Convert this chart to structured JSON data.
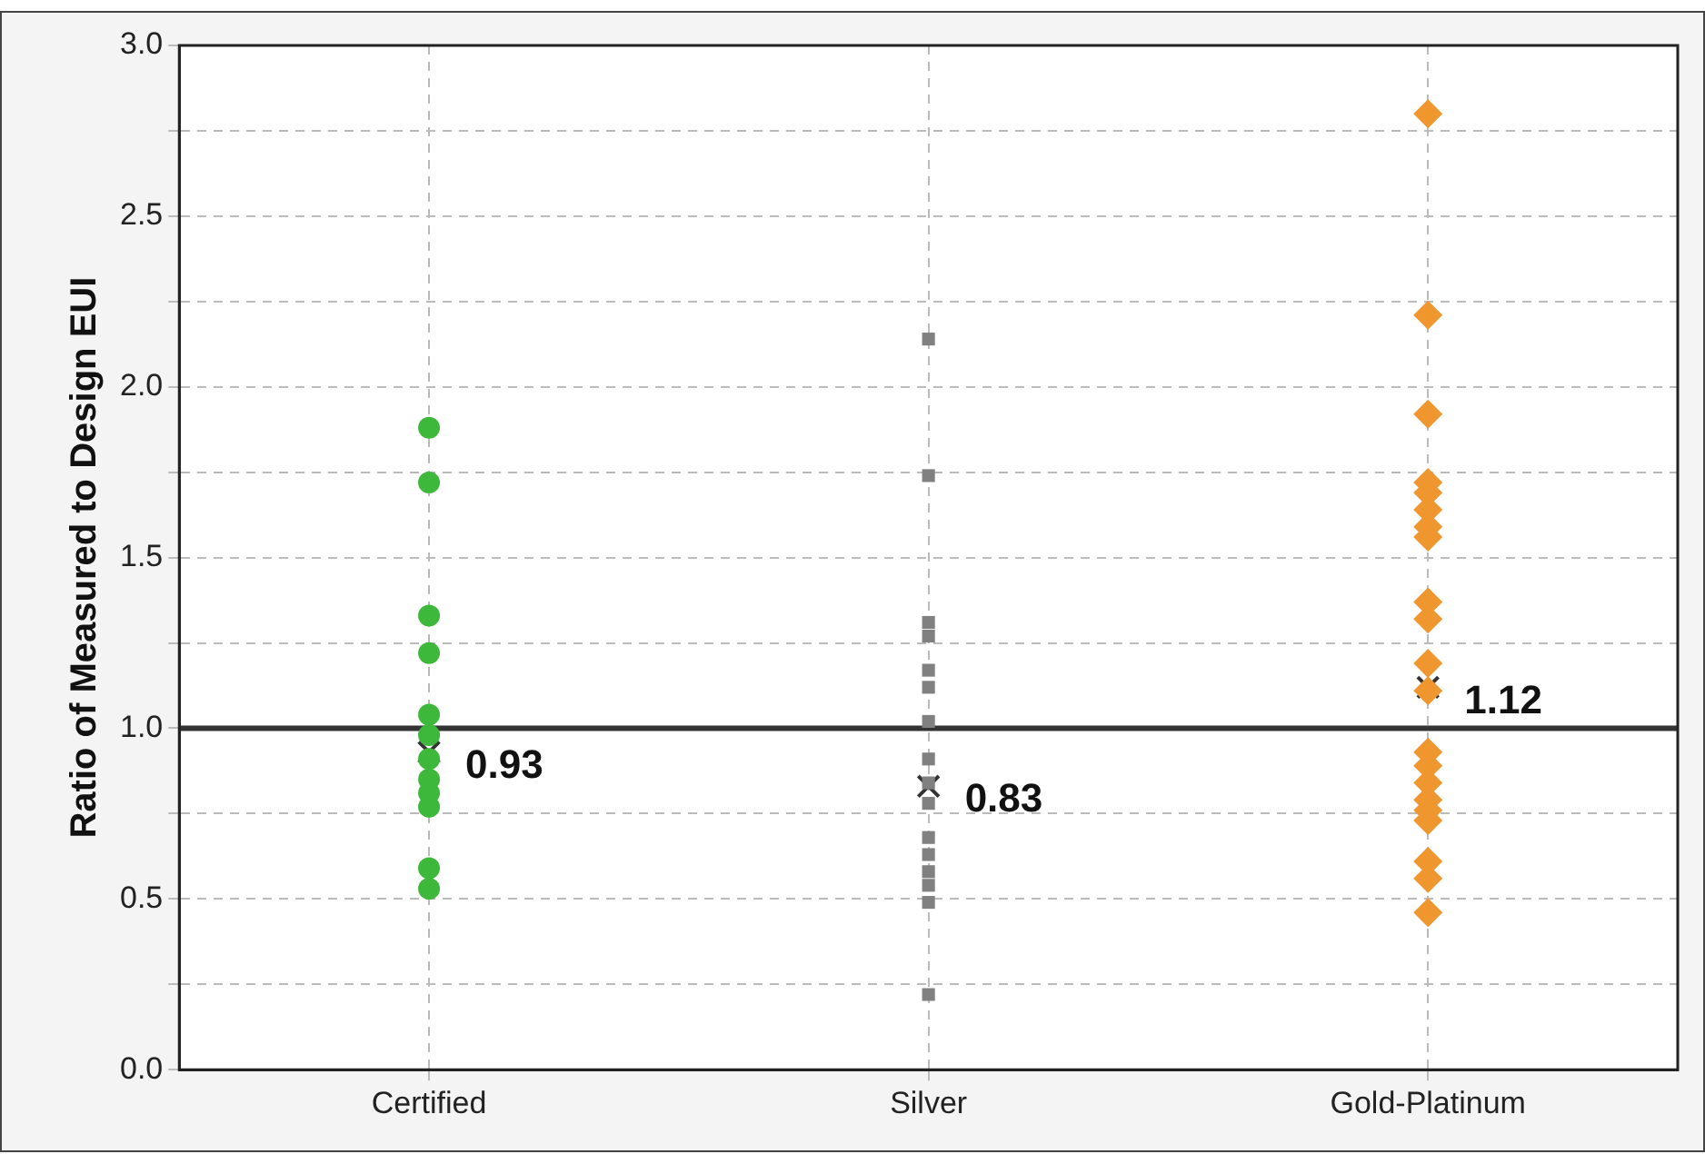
{
  "chart_data": {
    "type": "scatter",
    "ylabel": "Ratio of Measured to Design EUI",
    "categories": [
      "Certified",
      "Silver",
      "Gold-Platinum"
    ],
    "ylim": [
      0,
      3
    ],
    "yticks": [
      {
        "value": 0,
        "label": "0.0"
      },
      {
        "value": 0.25,
        "label": null
      },
      0.5,
      {
        "value": 0.75,
        "label": null
      },
      {
        "value": 1,
        "label": "1.0"
      },
      {
        "value": 1.25,
        "label": null
      },
      1.5,
      {
        "value": 1.75,
        "label": null
      },
      {
        "value": 2,
        "label": "2.0"
      },
      {
        "value": 2.25,
        "label": null
      },
      2.5,
      {
        "value": 2.75,
        "label": null
      },
      {
        "value": 3,
        "label": "3.0"
      }
    ],
    "grid": true,
    "legend": false,
    "ref_lines": [
      {
        "axis": "y",
        "value": 1,
        "color": "#333333",
        "line_style": "solid"
      }
    ],
    "series": [
      {
        "color": "#3db83a",
        "marker": "circle",
        "x": [
          "Certified",
          "Certified",
          "Certified",
          "Certified",
          "Certified",
          "Certified",
          "Certified",
          "Certified",
          "Certified",
          "Certified",
          "Certified",
          "Certified"
        ],
        "values": [
          1.88,
          1.72,
          1.33,
          1.22,
          1.04,
          0.98,
          0.91,
          0.85,
          0.81,
          0.77,
          0.59,
          0.53
        ]
      },
      {
        "color": "#808080",
        "marker": "square",
        "x": [
          "Silver",
          "Silver",
          "Silver",
          "Silver",
          "Silver",
          "Silver",
          "Silver",
          "Silver",
          "Silver",
          "Silver",
          "Silver",
          "Silver",
          "Silver",
          "Silver",
          "Silver",
          "Silver"
        ],
        "values": [
          2.14,
          1.74,
          1.31,
          1.27,
          1.17,
          1.12,
          1.02,
          0.91,
          0.84,
          0.78,
          0.68,
          0.63,
          0.58,
          0.54,
          0.49,
          0.22
        ]
      },
      {
        "color": "#f0962e",
        "marker": "diamond",
        "x": [
          "Gold-Platinum",
          "Gold-Platinum",
          "Gold-Platinum",
          "Gold-Platinum",
          "Gold-Platinum",
          "Gold-Platinum",
          "Gold-Platinum",
          "Gold-Platinum",
          "Gold-Platinum",
          "Gold-Platinum",
          "Gold-Platinum",
          "Gold-Platinum",
          "Gold-Platinum",
          "Gold-Platinum",
          "Gold-Platinum",
          "Gold-Platinum",
          "Gold-Platinum",
          "Gold-Platinum",
          "Gold-Platinum",
          "Gold-Platinum",
          "Gold-Platinum"
        ],
        "values": [
          2.8,
          2.21,
          1.92,
          1.64,
          1.72,
          1.69,
          1.59,
          1.56,
          1.32,
          1.37,
          1.19,
          1.11,
          0.93,
          0.89,
          0.84,
          0.79,
          0.76,
          0.73,
          0.56,
          0.61,
          0.46
        ]
      },
      {
        "color": "#333333",
        "marker": "cross",
        "x": [
          "Certified",
          "Silver",
          "Gold-Platinum"
        ],
        "values": [
          0.93,
          0.83,
          1.12
        ],
        "value_labels": [
          "0.93",
          "0.83",
          "1.12"
        ]
      }
    ]
  }
}
